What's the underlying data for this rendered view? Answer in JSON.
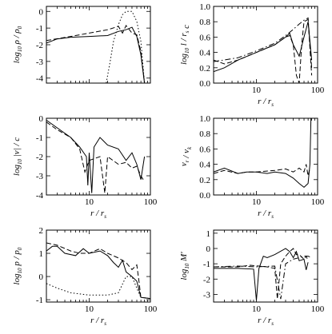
{
  "chart_data": [
    {
      "type": "line",
      "panel": "top-left",
      "xlabel": "",
      "ylabel": "log10 ρ / ρ0",
      "xscale": "log",
      "xlim": [
        2,
        100
      ],
      "ylim": [
        -4.3,
        0.3
      ],
      "x_ticks": [],
      "y_ticks": [
        "0",
        "-1",
        "-2",
        "-3",
        "-4"
      ],
      "series": [
        {
          "style": "solid",
          "points": [
            [
              2,
              -1.9
            ],
            [
              3,
              -1.65
            ],
            [
              5,
              -1.55
            ],
            [
              10,
              -1.5
            ],
            [
              20,
              -1.45
            ],
            [
              30,
              -1.2
            ],
            [
              40,
              -1.1
            ],
            [
              50,
              -0.95
            ],
            [
              60,
              -1.5
            ],
            [
              70,
              -2.6
            ],
            [
              80,
              -4.3
            ]
          ]
        },
        {
          "style": "dashed",
          "points": [
            [
              2,
              -1.75
            ],
            [
              5,
              -1.5
            ],
            [
              10,
              -1.3
            ],
            [
              20,
              -1.1
            ],
            [
              30,
              -0.9
            ],
            [
              35,
              -1.3
            ],
            [
              40,
              -0.85
            ],
            [
              50,
              -1.3
            ],
            [
              60,
              -1.4
            ],
            [
              70,
              -2.4
            ],
            [
              80,
              -4.3
            ]
          ]
        },
        {
          "style": "dotted",
          "points": [
            [
              19,
              -4.3
            ],
            [
              22,
              -3.0
            ],
            [
              25,
              -1.8
            ],
            [
              30,
              -0.8
            ],
            [
              35,
              -0.2
            ],
            [
              40,
              0.0
            ],
            [
              50,
              0.0
            ],
            [
              60,
              -0.6
            ],
            [
              70,
              -1.8
            ],
            [
              80,
              -4.3
            ]
          ]
        }
      ]
    },
    {
      "type": "line",
      "panel": "top-right",
      "xlabel": "r / rs",
      "ylabel": "log10 l / rs c",
      "xscale": "log",
      "xlim": [
        2,
        100
      ],
      "ylim": [
        0.0,
        1.0
      ],
      "x_ticks": [
        "10",
        "100"
      ],
      "y_ticks": [
        "0.0",
        "0.2",
        "0.4",
        "0.6",
        "0.8",
        "1.0"
      ],
      "series": [
        {
          "style": "solid",
          "points": [
            [
              2,
              0.15
            ],
            [
              3,
              0.2
            ],
            [
              5,
              0.3
            ],
            [
              10,
              0.4
            ],
            [
              20,
              0.5
            ],
            [
              30,
              0.6
            ],
            [
              35,
              0.65
            ],
            [
              40,
              0.5
            ],
            [
              50,
              0.35
            ],
            [
              60,
              0.6
            ],
            [
              70,
              0.8
            ],
            [
              80,
              0.3
            ]
          ]
        },
        {
          "style": "dashed",
          "points": [
            [
              2,
              0.3
            ],
            [
              3,
              0.25
            ],
            [
              5,
              0.3
            ],
            [
              10,
              0.4
            ],
            [
              20,
              0.5
            ],
            [
              30,
              0.6
            ],
            [
              35,
              0.62
            ],
            [
              40,
              0.5
            ],
            [
              45,
              0.1
            ],
            [
              50,
              0.0
            ],
            [
              55,
              0.5
            ],
            [
              60,
              0.8
            ],
            [
              70,
              0.83
            ],
            [
              80,
              0.1
            ]
          ]
        },
        {
          "style": "dashdot",
          "points": [
            [
              2,
              0.28
            ],
            [
              5,
              0.33
            ],
            [
              10,
              0.42
            ],
            [
              20,
              0.52
            ],
            [
              30,
              0.62
            ],
            [
              40,
              0.7
            ],
            [
              50,
              0.77
            ],
            [
              60,
              0.82
            ],
            [
              70,
              0.85
            ],
            [
              80,
              0.2
            ]
          ]
        }
      ]
    },
    {
      "type": "line",
      "panel": "middle-left",
      "xlabel": "r / rs",
      "ylabel": "log10 |v| / c",
      "xscale": "log",
      "xlim": [
        2,
        100
      ],
      "ylim": [
        -4.0,
        0.0
      ],
      "x_ticks": [
        "10",
        "100"
      ],
      "y_ticks": [
        "0",
        "-1",
        "-2",
        "-3",
        "-4"
      ],
      "series": [
        {
          "style": "solid",
          "points": [
            [
              2,
              -0.1
            ],
            [
              3,
              -0.5
            ],
            [
              5,
              -1.0
            ],
            [
              7,
              -1.5
            ],
            [
              9,
              -2.0
            ],
            [
              9.5,
              -3.5
            ],
            [
              10,
              -1.8
            ],
            [
              11,
              -3.9
            ],
            [
              12,
              -1.5
            ],
            [
              15,
              -1.0
            ],
            [
              20,
              -1.4
            ],
            [
              30,
              -1.6
            ],
            [
              40,
              -2.2
            ],
            [
              50,
              -1.8
            ],
            [
              60,
              -2.4
            ],
            [
              70,
              -3.2
            ],
            [
              80,
              -2.0
            ]
          ]
        },
        {
          "style": "dashed",
          "points": [
            [
              2,
              -0.2
            ],
            [
              3,
              -0.6
            ],
            [
              5,
              -1.0
            ],
            [
              7,
              -1.6
            ],
            [
              8.5,
              -2.8
            ],
            [
              10,
              -2.2
            ],
            [
              15,
              -2.0
            ],
            [
              18,
              -3.9
            ],
            [
              20,
              -2.0
            ],
            [
              30,
              -2.4
            ],
            [
              40,
              -2.3
            ],
            [
              50,
              -2.6
            ],
            [
              60,
              -2.5
            ],
            [
              70,
              -3.0
            ],
            [
              80,
              -3.3
            ]
          ]
        }
      ]
    },
    {
      "type": "line",
      "panel": "middle-right",
      "xlabel": "r / rs",
      "ylabel": "vr / vk",
      "xscale": "log",
      "xlim": [
        2,
        100
      ],
      "ylim": [
        0.0,
        1.0
      ],
      "x_ticks": [
        "10",
        "100"
      ],
      "y_ticks": [
        "0.0",
        "0.2",
        "0.4",
        "0.6",
        "0.8",
        "1.0"
      ],
      "series": [
        {
          "style": "solid",
          "points": [
            [
              2,
              0.3
            ],
            [
              3,
              0.35
            ],
            [
              5,
              0.28
            ],
            [
              7,
              0.3
            ],
            [
              10,
              0.3
            ],
            [
              15,
              0.28
            ],
            [
              20,
              0.3
            ],
            [
              30,
              0.28
            ],
            [
              40,
              0.22
            ],
            [
              50,
              0.15
            ],
            [
              60,
              0.1
            ],
            [
              70,
              0.15
            ],
            [
              75,
              0.4
            ],
            [
              78,
              1.0
            ]
          ]
        },
        {
          "style": "dashed",
          "points": [
            [
              2,
              0.28
            ],
            [
              3,
              0.32
            ],
            [
              5,
              0.28
            ],
            [
              7,
              0.3
            ],
            [
              10,
              0.3
            ],
            [
              20,
              0.32
            ],
            [
              30,
              0.34
            ],
            [
              40,
              0.3
            ],
            [
              50,
              0.35
            ],
            [
              60,
              0.3
            ],
            [
              65,
              0.4
            ],
            [
              70,
              0.25
            ],
            [
              75,
              0.35
            ]
          ]
        }
      ]
    },
    {
      "type": "line",
      "panel": "bottom-left",
      "xlabel": "r / rs",
      "ylabel": "log10 p / p0",
      "xscale": "log",
      "xlim": [
        2,
        100
      ],
      "ylim": [
        -1.1,
        2.0
      ],
      "x_ticks": [
        "10",
        "100"
      ],
      "y_ticks": [
        "2",
        "1",
        "0",
        "-1"
      ],
      "series": [
        {
          "style": "solid",
          "points": [
            [
              2,
              1.1
            ],
            [
              2.5,
              1.3
            ],
            [
              3,
              1.3
            ],
            [
              4,
              1.0
            ],
            [
              6,
              0.9
            ],
            [
              8,
              1.2
            ],
            [
              10,
              1.0
            ],
            [
              15,
              1.1
            ],
            [
              20,
              0.9
            ],
            [
              25,
              0.6
            ],
            [
              30,
              0.4
            ],
            [
              35,
              0.7
            ],
            [
              40,
              0.2
            ],
            [
              50,
              0.0
            ],
            [
              60,
              -0.2
            ],
            [
              70,
              -0.9
            ],
            [
              100,
              -0.95
            ]
          ]
        },
        {
          "style": "dashed",
          "points": [
            [
              2,
              1.45
            ],
            [
              3,
              1.35
            ],
            [
              5,
              1.1
            ],
            [
              7,
              1.0
            ],
            [
              10,
              1.0
            ],
            [
              15,
              1.2
            ],
            [
              20,
              1.0
            ],
            [
              30,
              0.8
            ],
            [
              40,
              0.6
            ],
            [
              50,
              0.3
            ],
            [
              60,
              0.5
            ],
            [
              65,
              -0.2
            ],
            [
              70,
              -0.9
            ],
            [
              100,
              -0.95
            ]
          ]
        },
        {
          "style": "dotted",
          "points": [
            [
              2,
              -0.3
            ],
            [
              3,
              -0.5
            ],
            [
              5,
              -0.7
            ],
            [
              10,
              -0.8
            ],
            [
              20,
              -0.8
            ],
            [
              30,
              -0.7
            ],
            [
              40,
              0.0
            ],
            [
              50,
              0.0
            ],
            [
              60,
              -0.5
            ],
            [
              70,
              -0.9
            ],
            [
              100,
              -0.95
            ]
          ]
        }
      ]
    },
    {
      "type": "line",
      "panel": "bottom-right",
      "xlabel": "r / rs",
      "ylabel": "log10 M'",
      "xscale": "log",
      "xlim": [
        2,
        100
      ],
      "ylim": [
        -3.5,
        1.2
      ],
      "x_ticks": [
        "10",
        "100"
      ],
      "y_ticks": [
        "1",
        "0",
        "-1",
        "-2",
        "-3"
      ],
      "series": [
        {
          "style": "solid",
          "points": [
            [
              2,
              -1.3
            ],
            [
              5,
              -1.3
            ],
            [
              9,
              -1.35
            ],
            [
              10,
              -3.4
            ],
            [
              11,
              -1.3
            ],
            [
              13,
              -0.5
            ],
            [
              15,
              -0.6
            ],
            [
              20,
              -0.4
            ],
            [
              30,
              0.0
            ],
            [
              35,
              -0.2
            ],
            [
              40,
              -0.6
            ],
            [
              45,
              -0.2
            ],
            [
              50,
              -0.8
            ],
            [
              60,
              -0.7
            ],
            [
              65,
              -1.4
            ],
            [
              70,
              -0.9
            ]
          ]
        },
        {
          "style": "dashed",
          "points": [
            [
              2,
              -1.2
            ],
            [
              5,
              -1.2
            ],
            [
              8,
              -1.1
            ],
            [
              15,
              -1.2
            ],
            [
              20,
              -1.3
            ],
            [
              22,
              -3.3
            ],
            [
              25,
              -1.0
            ],
            [
              30,
              -0.5
            ],
            [
              35,
              -0.2
            ],
            [
              40,
              0.0
            ],
            [
              45,
              -0.4
            ],
            [
              50,
              -0.4
            ],
            [
              60,
              -0.7
            ],
            [
              65,
              -0.5
            ],
            [
              70,
              -0.8
            ]
          ]
        },
        {
          "style": "dashdot",
          "points": [
            [
              2,
              -1.2
            ],
            [
              5,
              -1.15
            ],
            [
              10,
              -1.2
            ],
            [
              20,
              -1.15
            ],
            [
              25,
              -3.3
            ],
            [
              30,
              -1.0
            ],
            [
              40,
              -0.7
            ],
            [
              50,
              -0.6
            ],
            [
              60,
              -0.5
            ],
            [
              70,
              -0.5
            ],
            [
              80,
              -0.6
            ]
          ]
        }
      ]
    }
  ]
}
